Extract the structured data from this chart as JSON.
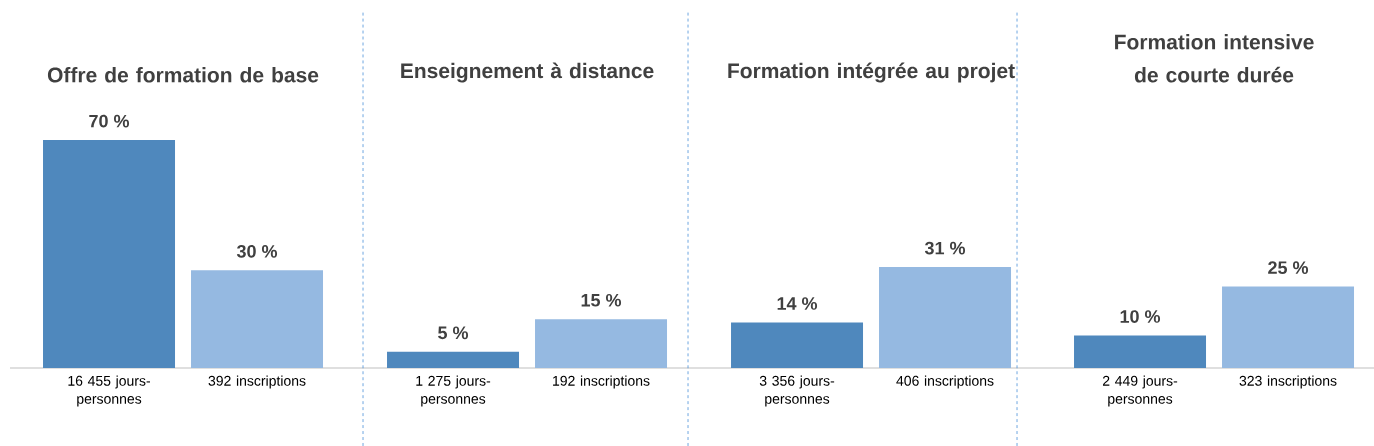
{
  "chart_data": [
    {
      "type": "bar",
      "title": "Offre de formation de base",
      "categories": [
        "16 455 jours-personnes",
        "392 inscriptions"
      ],
      "values": [
        70,
        30
      ],
      "colors": [
        "#4f88bd",
        "#95b9e1"
      ],
      "value_labels": [
        "70 %",
        "30 %"
      ]
    },
    {
      "type": "bar",
      "title": "Enseignement à distance",
      "categories": [
        "1 275 jours-personnes",
        "192 inscriptions"
      ],
      "values": [
        5,
        15
      ],
      "colors": [
        "#4f88bd",
        "#95b9e1"
      ],
      "value_labels": [
        "5 %",
        "15 %"
      ]
    },
    {
      "type": "bar",
      "title": "Formation intégrée au projet",
      "categories": [
        "3 356 jours-personnes",
        "406 inscriptions"
      ],
      "values": [
        14,
        31
      ],
      "colors": [
        "#4f88bd",
        "#95b9e1"
      ],
      "value_labels": [
        "14 %",
        "31 %"
      ]
    },
    {
      "type": "bar",
      "title": "Formation intensive de courte durée",
      "categories": [
        "2 449 jours-personnes",
        "323 inscriptions"
      ],
      "values": [
        10,
        25
      ],
      "colors": [
        "#4f88bd",
        "#95b9e1"
      ],
      "value_labels": [
        "10 %",
        "25 %"
      ]
    }
  ]
}
